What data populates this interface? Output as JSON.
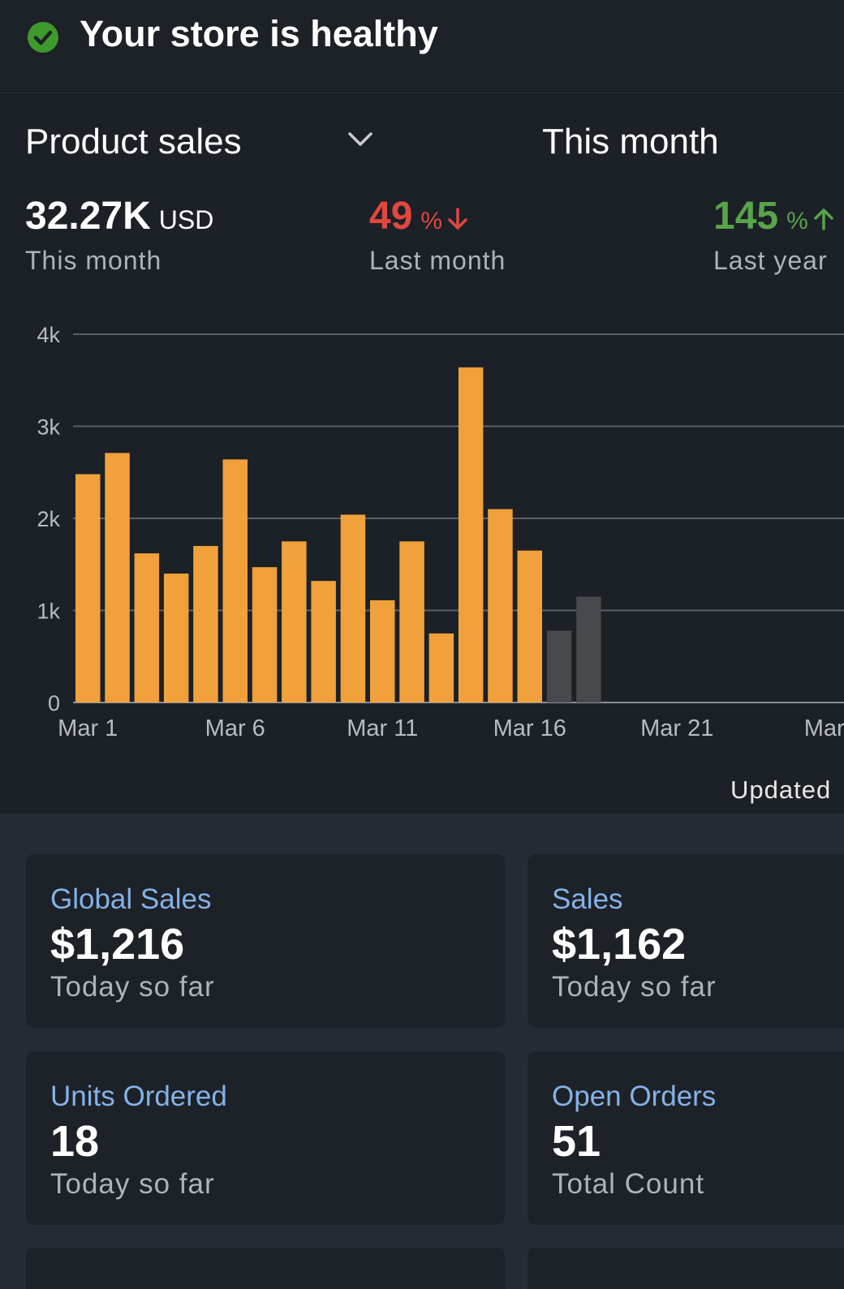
{
  "header": {
    "health_text": "Your store is healthy",
    "health_color": "#3f9a2d"
  },
  "selector": {
    "metric": "Product sales",
    "period": "This month"
  },
  "stats": {
    "this_month": {
      "value": "32.27K",
      "unit": "USD",
      "label": "This month"
    },
    "last_month": {
      "value": "49",
      "pct": "%",
      "direction": "down",
      "label": "Last month",
      "color": "#e0473f"
    },
    "last_year": {
      "value": "145",
      "pct": "%",
      "direction": "up",
      "label": "Last year",
      "color": "#58a44a"
    }
  },
  "chart_data": {
    "type": "bar",
    "x": [
      "Mar 1",
      "Mar 2",
      "Mar 3",
      "Mar 4",
      "Mar 5",
      "Mar 6",
      "Mar 7",
      "Mar 8",
      "Mar 9",
      "Mar 10",
      "Mar 11",
      "Mar 12",
      "Mar 13",
      "Mar 14",
      "Mar 15",
      "Mar 16",
      "Mar 17",
      "Mar 18"
    ],
    "series": [
      {
        "values": [
          2480,
          2710,
          1620,
          1400,
          1700,
          2640,
          1470,
          1750,
          1320,
          2040,
          1110,
          1750,
          750,
          3640,
          2100,
          1650,
          null,
          null
        ],
        "color": "#f0a13b"
      },
      {
        "values": [
          null,
          null,
          null,
          null,
          null,
          null,
          null,
          null,
          null,
          null,
          null,
          null,
          null,
          null,
          null,
          null,
          780,
          1150
        ],
        "color": "#47494d"
      }
    ],
    "x_tick_labels": [
      "Mar 1",
      "Mar 6",
      "Mar 11",
      "Mar 16",
      "Mar 21",
      "Mar"
    ],
    "y_tick_labels": [
      "0",
      "1k",
      "2k",
      "3k",
      "4k"
    ],
    "ylim": [
      0,
      4000
    ],
    "grid": true
  },
  "updated_text": "Updated",
  "cards": [
    {
      "title": "Global Sales",
      "value": "$1,216",
      "sub": "Today so far"
    },
    {
      "title": "Sales",
      "value": "$1,162",
      "sub": "Today so far"
    },
    {
      "title": "Units Ordered",
      "value": "18",
      "sub": "Today so far"
    },
    {
      "title": "Open Orders",
      "value": "51",
      "sub": "Total Count"
    }
  ]
}
